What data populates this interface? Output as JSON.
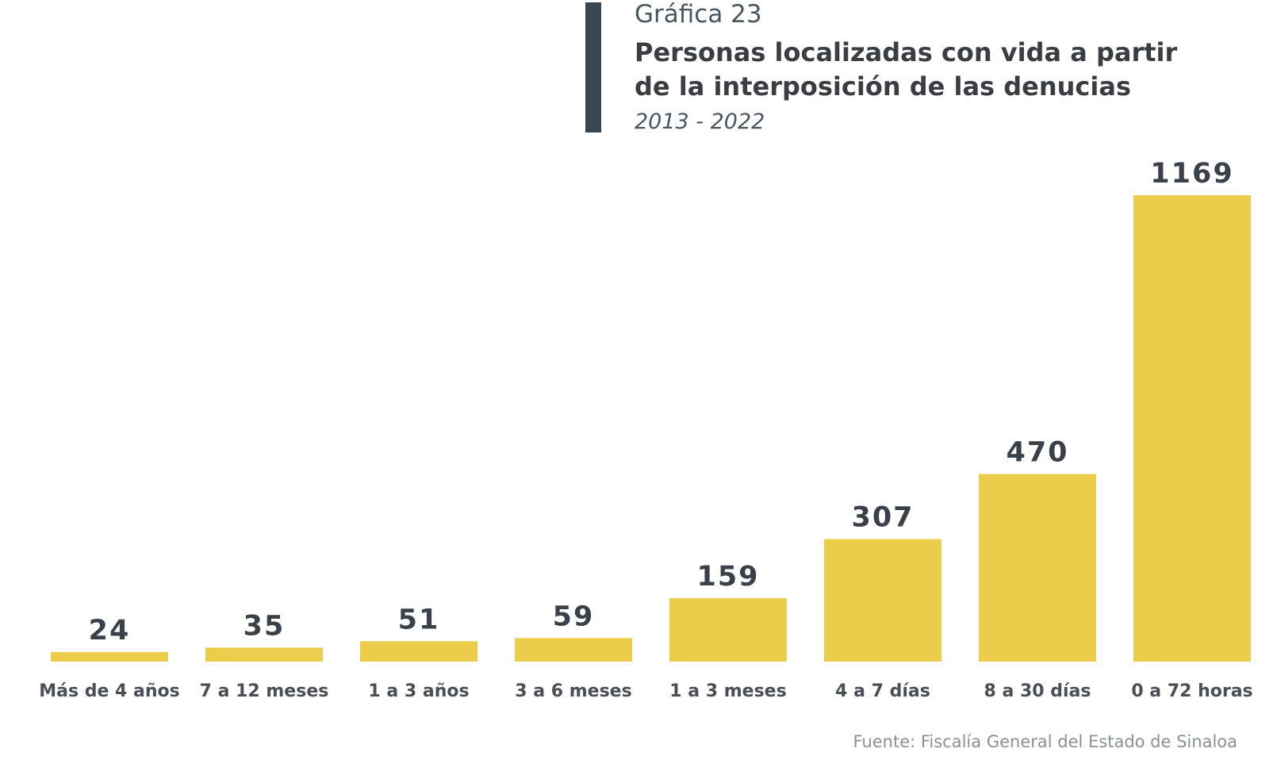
{
  "chart_data": {
    "type": "bar",
    "label": "Gráfica 23",
    "title": [
      "Personas localizadas con vida a partir",
      "de la interposición de las denucias"
    ],
    "subtitle": "2013 - 2022",
    "categories": [
      "Más de 4 años",
      "7 a 12 meses",
      "1 a 3 años",
      "3 a 6 meses",
      "1 a 3 meses",
      "4 a 7 días",
      "8 a 30 días",
      "0 a 72 horas"
    ],
    "values": [
      24,
      35,
      51,
      59,
      159,
      307,
      470,
      1169
    ],
    "color": "#ebcd4b",
    "source": "Fuente: Fiscalía General del Estado de Sinaloa"
  }
}
